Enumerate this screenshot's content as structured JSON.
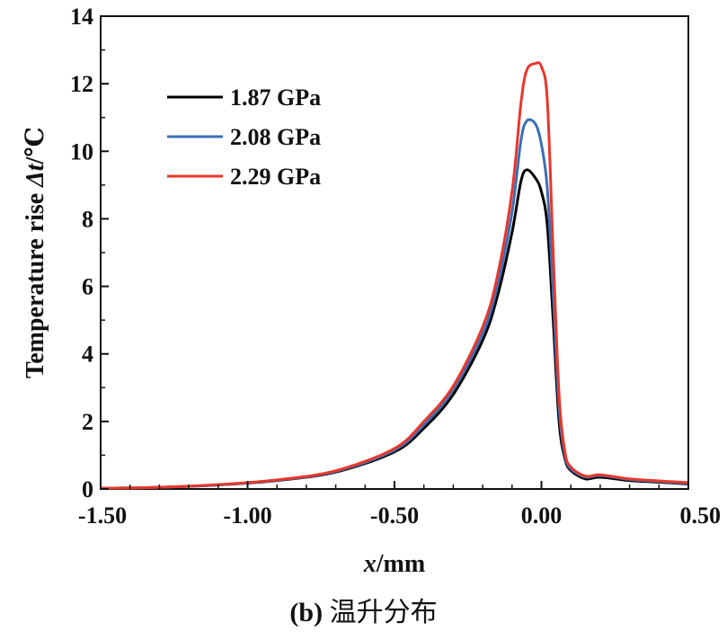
{
  "chart_data": {
    "type": "line",
    "xlabel_var": "x",
    "xlabel_unit": "/mm",
    "ylabel_text": "Temperature rise ",
    "ylabel_var": "Δt",
    "ylabel_unit": "/℃",
    "xlim": [
      -1.5,
      0.5
    ],
    "ylim": [
      0,
      14
    ],
    "xticks": [
      -1.5,
      -1.0,
      -0.5,
      0.0,
      0.5
    ],
    "xtick_labels": [
      "-1.50",
      "-1.00",
      "-0.50",
      "0.00",
      "0.50"
    ],
    "yticks": [
      0,
      2,
      4,
      6,
      8,
      10,
      12,
      14
    ],
    "ytick_labels": [
      "0",
      "2",
      "4",
      "6",
      "8",
      "10",
      "12",
      "14"
    ],
    "grid": false,
    "legend_position": "top-left",
    "series": [
      {
        "name": "1.87 GPa",
        "color": "#000000",
        "x": [
          -1.5,
          -1.3,
          -1.1,
          -0.9,
          -0.7,
          -0.5,
          -0.4,
          -0.3,
          -0.2,
          -0.15,
          -0.1,
          -0.07,
          -0.05,
          -0.02,
          0.0,
          0.02,
          0.04,
          0.06,
          0.08,
          0.1,
          0.15,
          0.2,
          0.3,
          0.4,
          0.5
        ],
        "y": [
          0.02,
          0.05,
          0.12,
          0.25,
          0.5,
          1.1,
          1.8,
          2.8,
          4.4,
          5.7,
          7.6,
          9.1,
          9.45,
          9.2,
          8.8,
          7.8,
          5.0,
          2.0,
          0.9,
          0.55,
          0.3,
          0.35,
          0.25,
          0.2,
          0.15
        ]
      },
      {
        "name": "2.08 GPa",
        "color": "#3a6fb8",
        "x": [
          -1.5,
          -1.3,
          -1.1,
          -0.9,
          -0.7,
          -0.5,
          -0.4,
          -0.3,
          -0.2,
          -0.15,
          -0.1,
          -0.07,
          -0.05,
          -0.02,
          0.0,
          0.02,
          0.04,
          0.06,
          0.08,
          0.1,
          0.15,
          0.2,
          0.3,
          0.4,
          0.5
        ],
        "y": [
          0.02,
          0.05,
          0.12,
          0.26,
          0.52,
          1.15,
          1.9,
          2.95,
          4.6,
          6.0,
          8.2,
          10.3,
          10.9,
          10.8,
          10.2,
          8.9,
          5.8,
          2.4,
          1.0,
          0.6,
          0.35,
          0.4,
          0.28,
          0.22,
          0.17
        ]
      },
      {
        "name": "2.29 GPa",
        "color": "#e8372a",
        "x": [
          -1.5,
          -1.3,
          -1.1,
          -0.9,
          -0.7,
          -0.5,
          -0.4,
          -0.3,
          -0.2,
          -0.15,
          -0.1,
          -0.07,
          -0.05,
          -0.02,
          0.0,
          0.02,
          0.04,
          0.06,
          0.08,
          0.1,
          0.15,
          0.2,
          0.3,
          0.4,
          0.5
        ],
        "y": [
          0.02,
          0.05,
          0.13,
          0.27,
          0.54,
          1.2,
          2.0,
          3.05,
          4.8,
          6.3,
          8.8,
          11.4,
          12.4,
          12.6,
          12.5,
          11.5,
          7.0,
          2.8,
          1.1,
          0.65,
          0.38,
          0.42,
          0.3,
          0.24,
          0.19
        ]
      }
    ]
  },
  "caption": {
    "prefix": "(b)",
    "text": " 温升分布"
  }
}
